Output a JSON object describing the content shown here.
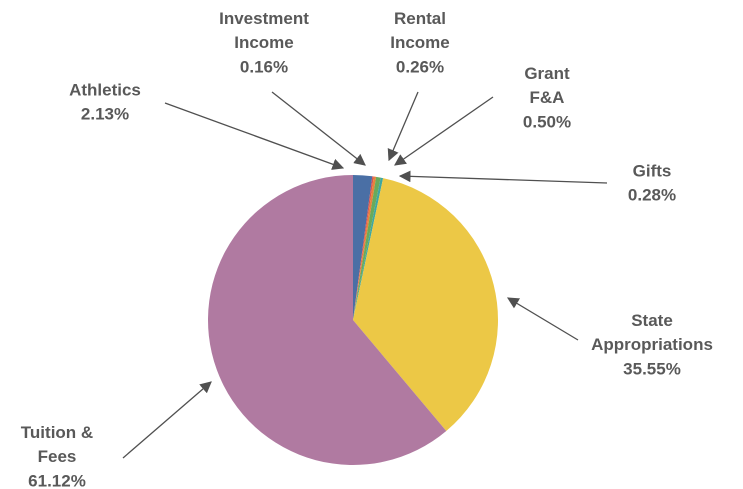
{
  "chart_data": {
    "type": "pie",
    "categories": [
      "Athletics",
      "Investment Income",
      "Rental Income",
      "Grant F&A",
      "Gifts",
      "State Appropriations",
      "Tuition & Fees"
    ],
    "values": [
      2.13,
      0.16,
      0.26,
      0.5,
      0.28,
      35.55,
      61.12
    ],
    "value_labels": [
      "2.13%",
      "0.16%",
      "0.26%",
      "0.50%",
      "0.28%",
      "35.55%",
      "61.12%"
    ],
    "colors": [
      "#4a6fa5",
      "#d9534f",
      "#e8833a",
      "#6aaa5a",
      "#3fa7a0",
      "#ecc846",
      "#b07aa1"
    ]
  }
}
